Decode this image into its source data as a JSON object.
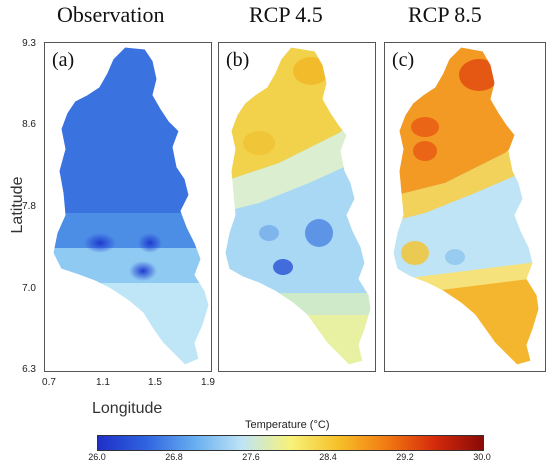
{
  "titles": [
    "Observation",
    "RCP 4.5",
    "RCP 8.5"
  ],
  "panel_letters": [
    "(a)",
    "(b)",
    "(c)"
  ],
  "axes": {
    "ylabel": "Latitude",
    "xlabel": "Longitude",
    "yticks": [
      "9.3",
      "8.6",
      "7.8",
      "7.0",
      "6.3"
    ],
    "xticks": [
      "0.7",
      "1.1",
      "1.5",
      "1.9"
    ]
  },
  "colorbar": {
    "title": "Temperature (°C)",
    "ticks": [
      "26.0",
      "26.8",
      "27.6",
      "28.4",
      "29.2",
      "30.0"
    ],
    "colors": [
      "#1f2fc8",
      "#2f63e0",
      "#66aef0",
      "#bfe4f5",
      "#f7f27a",
      "#f6c028",
      "#f27a12",
      "#d42a0b",
      "#8a0a08"
    ]
  },
  "panel_colors": {
    "a": {
      "base": "#4f8fe6",
      "north": "#2f64dc",
      "south": "#a9dcf5"
    },
    "b": {
      "north": "#f3d63d",
      "mid": "#c6e6f4",
      "south": "#8fc8ef",
      "tip": "#e8f29a"
    },
    "c": {
      "north": "#f08a1e",
      "mid": "#bfe4f5",
      "south": "#f2b229"
    }
  }
}
